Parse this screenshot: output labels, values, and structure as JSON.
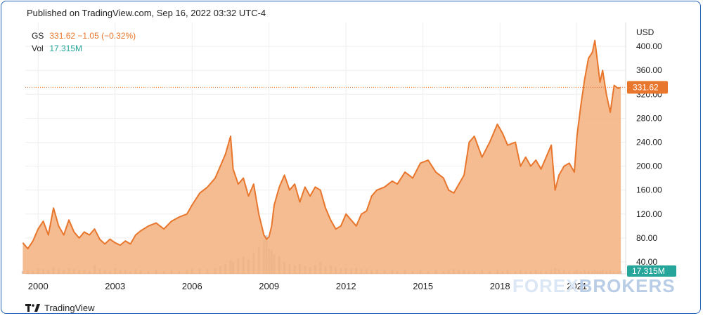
{
  "header": {
    "published": "Published on TradingView.com, Sep 16, 2022 03:32 UTC-4"
  },
  "legend": {
    "symbol": "GS",
    "price": "331.62",
    "change": "−1.05 (−0.32%)",
    "vol_label": "Vol",
    "vol_value": "17.315M"
  },
  "footer": {
    "brand": "TradingView"
  },
  "watermark": {
    "left": "FOREX",
    "right": "BROKERS"
  },
  "colors": {
    "line": "#e8762c",
    "fill": "#f3b07f",
    "volume": "#c9c9c9",
    "volume_badge": "#26a69a",
    "grid": "#eeeeee",
    "text": "#1f1f1f"
  },
  "chart_data": {
    "type": "area",
    "title": "",
    "ylabel": "USD",
    "ylim": [
      20,
      440
    ],
    "xlim": [
      1999.5,
      2022.9
    ],
    "yticks": [
      40,
      80,
      120,
      160,
      200,
      240,
      280,
      320,
      360,
      400
    ],
    "ytick_labels": [
      "40.00",
      "80.00",
      "120.00",
      "160.00",
      "200.00",
      "240.00",
      "280.00",
      "320.00",
      "360.00",
      "400.00"
    ],
    "xticks": [
      2000,
      2003,
      2006,
      2009,
      2012,
      2015,
      2018,
      2021
    ],
    "xtick_labels": [
      "2000",
      "2003",
      "2006",
      "2009",
      "2012",
      "2015",
      "2018",
      "2021"
    ],
    "last_price": 331.62,
    "last_price_label": "331.62",
    "volume_label": "17.315M",
    "series": [
      {
        "x": [
          1999.4,
          1999.6,
          1999.8,
          2000.0,
          2000.2,
          2000.4,
          2000.6,
          2000.8,
          2001.0,
          2001.2,
          2001.4,
          2001.6,
          2001.8,
          2002.0,
          2002.2,
          2002.4,
          2002.6,
          2002.8,
          2003.0,
          2003.2,
          2003.4,
          2003.6,
          2003.8,
          2004.0,
          2004.3,
          2004.6,
          2004.9,
          2005.2,
          2005.5,
          2005.8,
          2006.0,
          2006.3,
          2006.6,
          2006.9,
          2007.1,
          2007.3,
          2007.5,
          2007.6,
          2007.8,
          2008.0,
          2008.2,
          2008.4,
          2008.6,
          2008.8,
          2008.9,
          2009.0,
          2009.1,
          2009.2,
          2009.4,
          2009.6,
          2009.8,
          2010.0,
          2010.2,
          2010.4,
          2010.6,
          2010.8,
          2011.0,
          2011.2,
          2011.4,
          2011.6,
          2011.8,
          2012.0,
          2012.2,
          2012.4,
          2012.6,
          2012.8,
          2013.0,
          2013.2,
          2013.5,
          2013.8,
          2014.0,
          2014.3,
          2014.6,
          2014.9,
          2015.2,
          2015.5,
          2015.8,
          2016.0,
          2016.2,
          2016.4,
          2016.6,
          2016.8,
          2017.0,
          2017.3,
          2017.6,
          2017.9,
          2018.1,
          2018.3,
          2018.6,
          2018.8,
          2019.0,
          2019.2,
          2019.4,
          2019.6,
          2019.8,
          2020.0,
          2020.15,
          2020.3,
          2020.5,
          2020.7,
          2020.9,
          2021.0,
          2021.15,
          2021.3,
          2021.45,
          2021.6,
          2021.7,
          2021.8,
          2021.9,
          2022.0,
          2022.15,
          2022.3,
          2022.45,
          2022.6,
          2022.71
        ],
        "values": [
          72,
          62,
          75,
          95,
          108,
          85,
          130,
          100,
          85,
          110,
          90,
          80,
          90,
          85,
          95,
          78,
          70,
          78,
          72,
          68,
          75,
          70,
          85,
          92,
          100,
          105,
          95,
          108,
          115,
          120,
          135,
          155,
          165,
          180,
          200,
          220,
          250,
          195,
          170,
          180,
          150,
          170,
          120,
          85,
          78,
          82,
          100,
          135,
          165,
          185,
          160,
          170,
          140,
          165,
          150,
          165,
          160,
          130,
          110,
          95,
          100,
          120,
          110,
          100,
          120,
          125,
          150,
          160,
          165,
          175,
          170,
          190,
          180,
          205,
          210,
          190,
          180,
          160,
          155,
          170,
          185,
          240,
          250,
          215,
          240,
          270,
          255,
          235,
          240,
          200,
          215,
          200,
          210,
          195,
          215,
          235,
          160,
          185,
          200,
          205,
          190,
          250,
          300,
          345,
          380,
          390,
          410,
          375,
          340,
          360,
          320,
          290,
          335,
          330,
          331.62
        ]
      }
    ],
    "volume": {
      "x": [
        1999.4,
        1999.6,
        1999.8,
        2000.0,
        2000.2,
        2000.4,
        2000.6,
        2000.8,
        2001.0,
        2001.2,
        2001.4,
        2001.6,
        2001.8,
        2002.0,
        2002.2,
        2002.4,
        2002.6,
        2002.8,
        2003.0,
        2003.2,
        2003.4,
        2003.6,
        2003.8,
        2004.0,
        2004.3,
        2004.6,
        2004.9,
        2005.2,
        2005.5,
        2005.8,
        2006.0,
        2006.3,
        2006.6,
        2006.9,
        2007.1,
        2007.3,
        2007.5,
        2007.6,
        2007.8,
        2008.0,
        2008.2,
        2008.4,
        2008.6,
        2008.8,
        2008.9,
        2009.0,
        2009.1,
        2009.2,
        2009.4,
        2009.6,
        2009.8,
        2010.0,
        2010.2,
        2010.4,
        2010.6,
        2010.8,
        2011.0,
        2011.2,
        2011.4,
        2011.6,
        2011.8,
        2012.0,
        2012.2,
        2012.4,
        2012.6,
        2012.8,
        2013.0,
        2013.2,
        2013.5,
        2013.8,
        2014.0,
        2014.3,
        2014.6,
        2014.9,
        2015.2,
        2015.5,
        2015.8,
        2016.0,
        2016.2,
        2016.4,
        2016.6,
        2016.8,
        2017.0,
        2017.3,
        2017.6,
        2017.9,
        2018.1,
        2018.3,
        2018.6,
        2018.8,
        2019.0,
        2019.2,
        2019.4,
        2019.6,
        2019.8,
        2020.0,
        2020.15,
        2020.3,
        2020.5,
        2020.7,
        2020.9,
        2021.0,
        2021.15,
        2021.3,
        2021.45,
        2021.6,
        2021.7,
        2021.8,
        2021.9,
        2022.0,
        2022.15,
        2022.3,
        2022.45,
        2022.6,
        2022.71
      ],
      "values": [
        3,
        4,
        3,
        6,
        5,
        4,
        7,
        5,
        4,
        6,
        5,
        4,
        4,
        3,
        9,
        5,
        4,
        3,
        6,
        4,
        4,
        3,
        5,
        4,
        3,
        4,
        3,
        4,
        3,
        4,
        5,
        5,
        5,
        6,
        8,
        10,
        14,
        12,
        16,
        18,
        15,
        22,
        28,
        35,
        40,
        26,
        25,
        20,
        18,
        12,
        10,
        9,
        10,
        8,
        7,
        9,
        12,
        8,
        9,
        7,
        6,
        6,
        5,
        6,
        5,
        5,
        4,
        5,
        4,
        4,
        3,
        4,
        3,
        4,
        3,
        4,
        3,
        4,
        5,
        4,
        4,
        3,
        3,
        4,
        3,
        4,
        3,
        4,
        3,
        4,
        3,
        3,
        4,
        3,
        3,
        4,
        6,
        5,
        4,
        3,
        3,
        4,
        3,
        4,
        3,
        3,
        4,
        3,
        3,
        4,
        3,
        4,
        3,
        3,
        3
      ]
    }
  }
}
